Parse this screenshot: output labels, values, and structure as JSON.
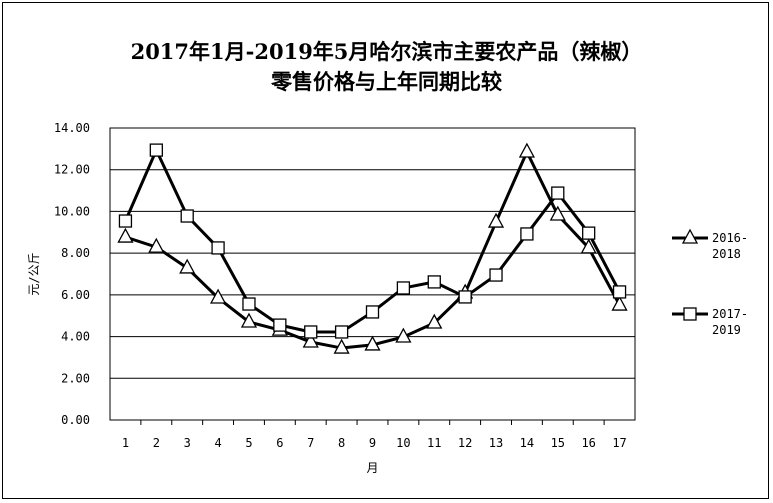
{
  "chart_data": {
    "type": "line",
    "title_line1": "2017年1月-2019年5月哈尔滨市主要农产品（辣椒）",
    "title_line2": "零售价格与上年同期比较",
    "xlabel": "月",
    "ylabel": "元/公斤",
    "categories": [
      "1",
      "2",
      "3",
      "4",
      "5",
      "6",
      "7",
      "8",
      "9",
      "10",
      "11",
      "12",
      "13",
      "14",
      "15",
      "16",
      "17"
    ],
    "ylim": [
      0,
      14
    ],
    "yticks": [
      "0.00",
      "2.00",
      "4.00",
      "6.00",
      "8.00",
      "10.00",
      "12.00",
      "14.00"
    ],
    "grid": true,
    "legend_position": "right",
    "series": [
      {
        "name": "2016-2018",
        "label_line1": "2016-",
        "label_line2": "2018",
        "marker": "triangle",
        "values": [
          8.77,
          8.29,
          7.29,
          5.85,
          4.7,
          4.31,
          3.74,
          3.45,
          3.6,
          3.98,
          4.65,
          6.09,
          9.49,
          12.85,
          9.83,
          8.25,
          5.51
        ]
      },
      {
        "name": "2017-2019",
        "label_line1": "2017-",
        "label_line2": "2019",
        "marker": "square",
        "values": [
          9.54,
          12.94,
          9.78,
          8.25,
          5.56,
          4.55,
          4.22,
          4.22,
          5.18,
          6.33,
          6.62,
          5.9,
          6.95,
          8.92,
          10.88,
          8.96,
          6.14
        ]
      }
    ]
  }
}
